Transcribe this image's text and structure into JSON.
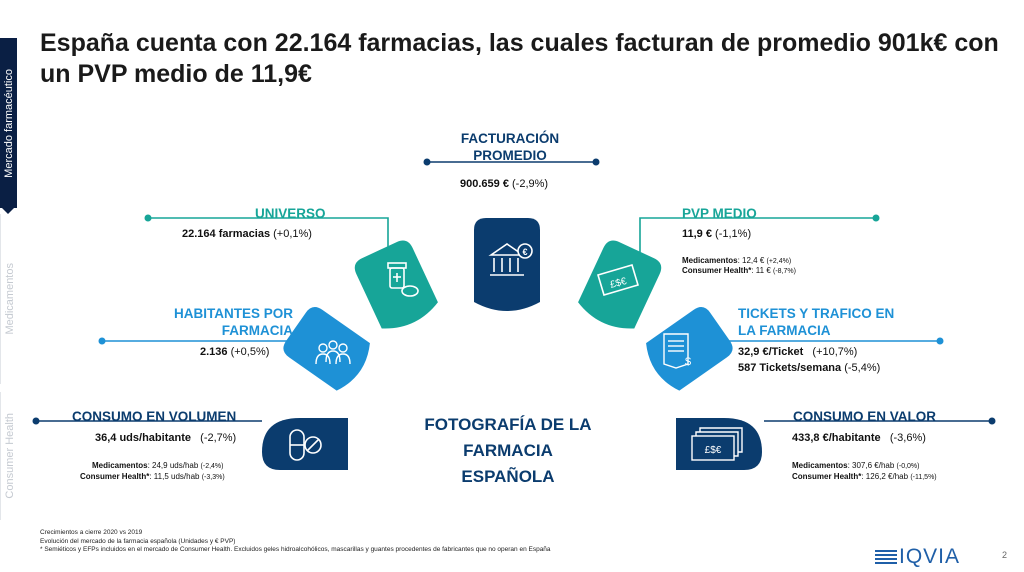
{
  "sidebar": {
    "items": [
      {
        "label": "Mercado farmacéutico",
        "active": true
      },
      {
        "label": "Medicamentos",
        "active": false
      },
      {
        "label": "Consumer Health",
        "active": false
      }
    ]
  },
  "title": "España cuenta con 22.164 farmacias, las cuales facturan de promedio 901k€ con un PVP medio de 11,9€",
  "center_title": [
    "FOTOGRAFÍA DE LA",
    "FARMACIA",
    "ESPAÑOLA"
  ],
  "colors": {
    "teal": "#17a598",
    "blue": "#1e91d6",
    "navy": "#0b3c6e",
    "dark_navy": "#0a1f44"
  },
  "facturacion": {
    "label": [
      "FACTURACIÓN",
      "PROMEDIO"
    ],
    "value": "900.659 €",
    "change": "(-2,9%)",
    "icon": "bank-euro-icon"
  },
  "universo": {
    "label": "UNIVERSO",
    "value": "22.164 farmacias",
    "change": "(+0,1%)",
    "icon": "medicine-bottle-pills-icon"
  },
  "habitantes": {
    "label": [
      "HABITANTES POR",
      "FARMACIA"
    ],
    "value": "2.136",
    "change": "(+0,5%)",
    "icon": "people-group-icon"
  },
  "volumen": {
    "label": "CONSUMO EN VOLUMEN",
    "value": "36,4 uds/habitante",
    "change": "(-2,7%)",
    "med_label": "Medicamentos",
    "med_value": ": 24,9  uds/hab",
    "med_change": "(-2,4%)",
    "ch_label": "Consumer Health*",
    "ch_value": ": 11,5 uds/hab",
    "ch_change": "(-3,3%)",
    "icon": "capsule-pill-icon"
  },
  "pvp": {
    "label": "PVP MEDIO",
    "value": "11,9 €",
    "change": "(-1,1%)",
    "med_label": "Medicamentos",
    "med_value": ": 12,4  €",
    "med_change": "(+2,4%)",
    "ch_label": "Consumer Health*",
    "ch_value": ": 11 €",
    "ch_change": "(-8,7%)",
    "icon": "price-tag-currency-icon"
  },
  "tickets": {
    "label": [
      "TICKETS Y TRAFICO EN",
      "LA FARMACIA"
    ],
    "value1": "32,9 €/Ticket",
    "change1": "(+10,7%)",
    "value2": "587 Tickets/semana",
    "change2": "(-5,4%)",
    "icon": "receipt-icon"
  },
  "valor": {
    "label": "CONSUMO EN VALOR",
    "value": "433,8 €/habitante",
    "change": "(-3,6%)",
    "med_label": "Medicamentos",
    "med_value": ": 307,6  €/hab",
    "med_change": "(-0,0%)",
    "ch_label": "Consumer Health*",
    "ch_value": ": 126,2 €/hab",
    "ch_change": "(-11,5%)",
    "icon": "banknotes-icon"
  },
  "notes": {
    "line1": "Crecimientos a cierre 2020 vs 2019",
    "line2": "Evolución del mercado de la farmacia española (Unidades y € PVP)",
    "line3": "* Semiéticos y EFPs incluidos en el mercado de Consumer Health. Excluidos geles hidroalcohólicos, mascarillas y guantes procedentes de fabricantes que no operan en España"
  },
  "logo": "IQVIA",
  "page_number": "2"
}
